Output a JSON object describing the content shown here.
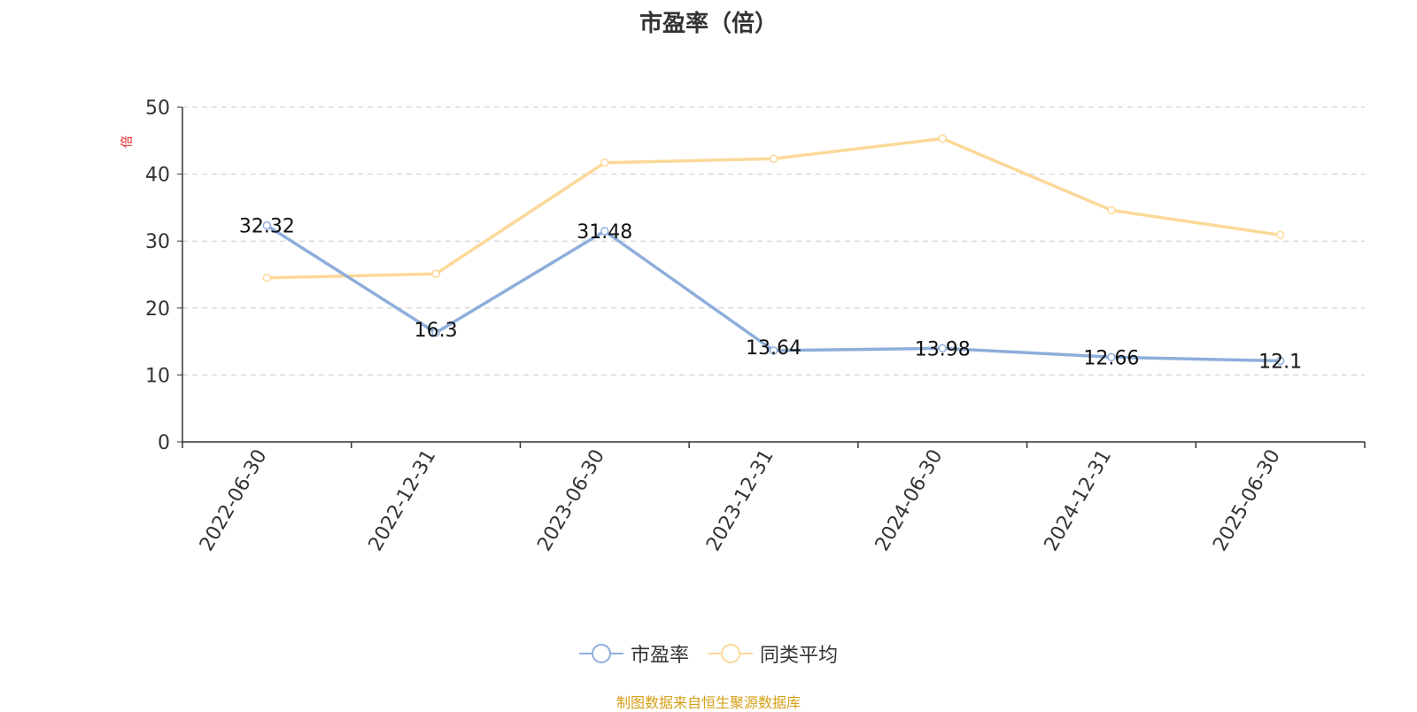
{
  "chart_data": {
    "type": "line",
    "title": "市盈率（倍）",
    "ylabel": "倍",
    "xlabel": "",
    "ylim": [
      0,
      50
    ],
    "yticks": [
      0,
      10,
      20,
      30,
      40,
      50
    ],
    "grid": true,
    "legend_position": "bottom-center",
    "categories": [
      "2022-06-30",
      "2022-12-31",
      "2023-06-30",
      "2023-12-31",
      "2024-06-30",
      "2024-12-31",
      "2025-06-30"
    ],
    "series": [
      {
        "name": "市盈率",
        "color": "#8eaedb",
        "values": [
          32.32,
          16.3,
          31.48,
          13.64,
          13.98,
          12.66,
          12.1
        ],
        "labels": [
          "32.32",
          "16.3",
          "31.48",
          "13.64",
          "13.98",
          "12.66",
          "12.1"
        ]
      },
      {
        "name": "同类平均",
        "color": "#fcd898",
        "values": [
          24.5,
          25.1,
          41.7,
          42.3,
          45.3,
          34.6,
          30.9
        ]
      }
    ],
    "source": "制图数据来自恒生聚源数据库"
  },
  "colors": {
    "axis": "#333333",
    "grid": "#cccccc",
    "ylabel": "#e02020",
    "source": "#d4a017"
  }
}
